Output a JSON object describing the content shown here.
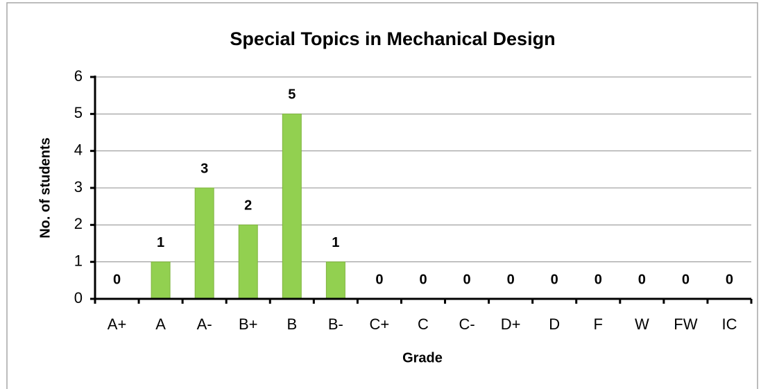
{
  "chart_data": {
    "type": "bar",
    "title": "Special Topics in Mechanical Design",
    "x_label": "Grade",
    "y_label": "No. of students",
    "categories": [
      "A+",
      "A",
      "A-",
      "B+",
      "B",
      "B-",
      "C+",
      "C",
      "C-",
      "D+",
      "D",
      "F",
      "W",
      "FW",
      "IC"
    ],
    "values": [
      0,
      1,
      3,
      2,
      5,
      1,
      0,
      0,
      0,
      0,
      0,
      0,
      0,
      0,
      0
    ],
    "color": "#92d050",
    "ylim": [
      0,
      6
    ],
    "yticks": [
      0,
      1,
      2,
      3,
      4,
      5,
      6
    ],
    "grid": true
  }
}
